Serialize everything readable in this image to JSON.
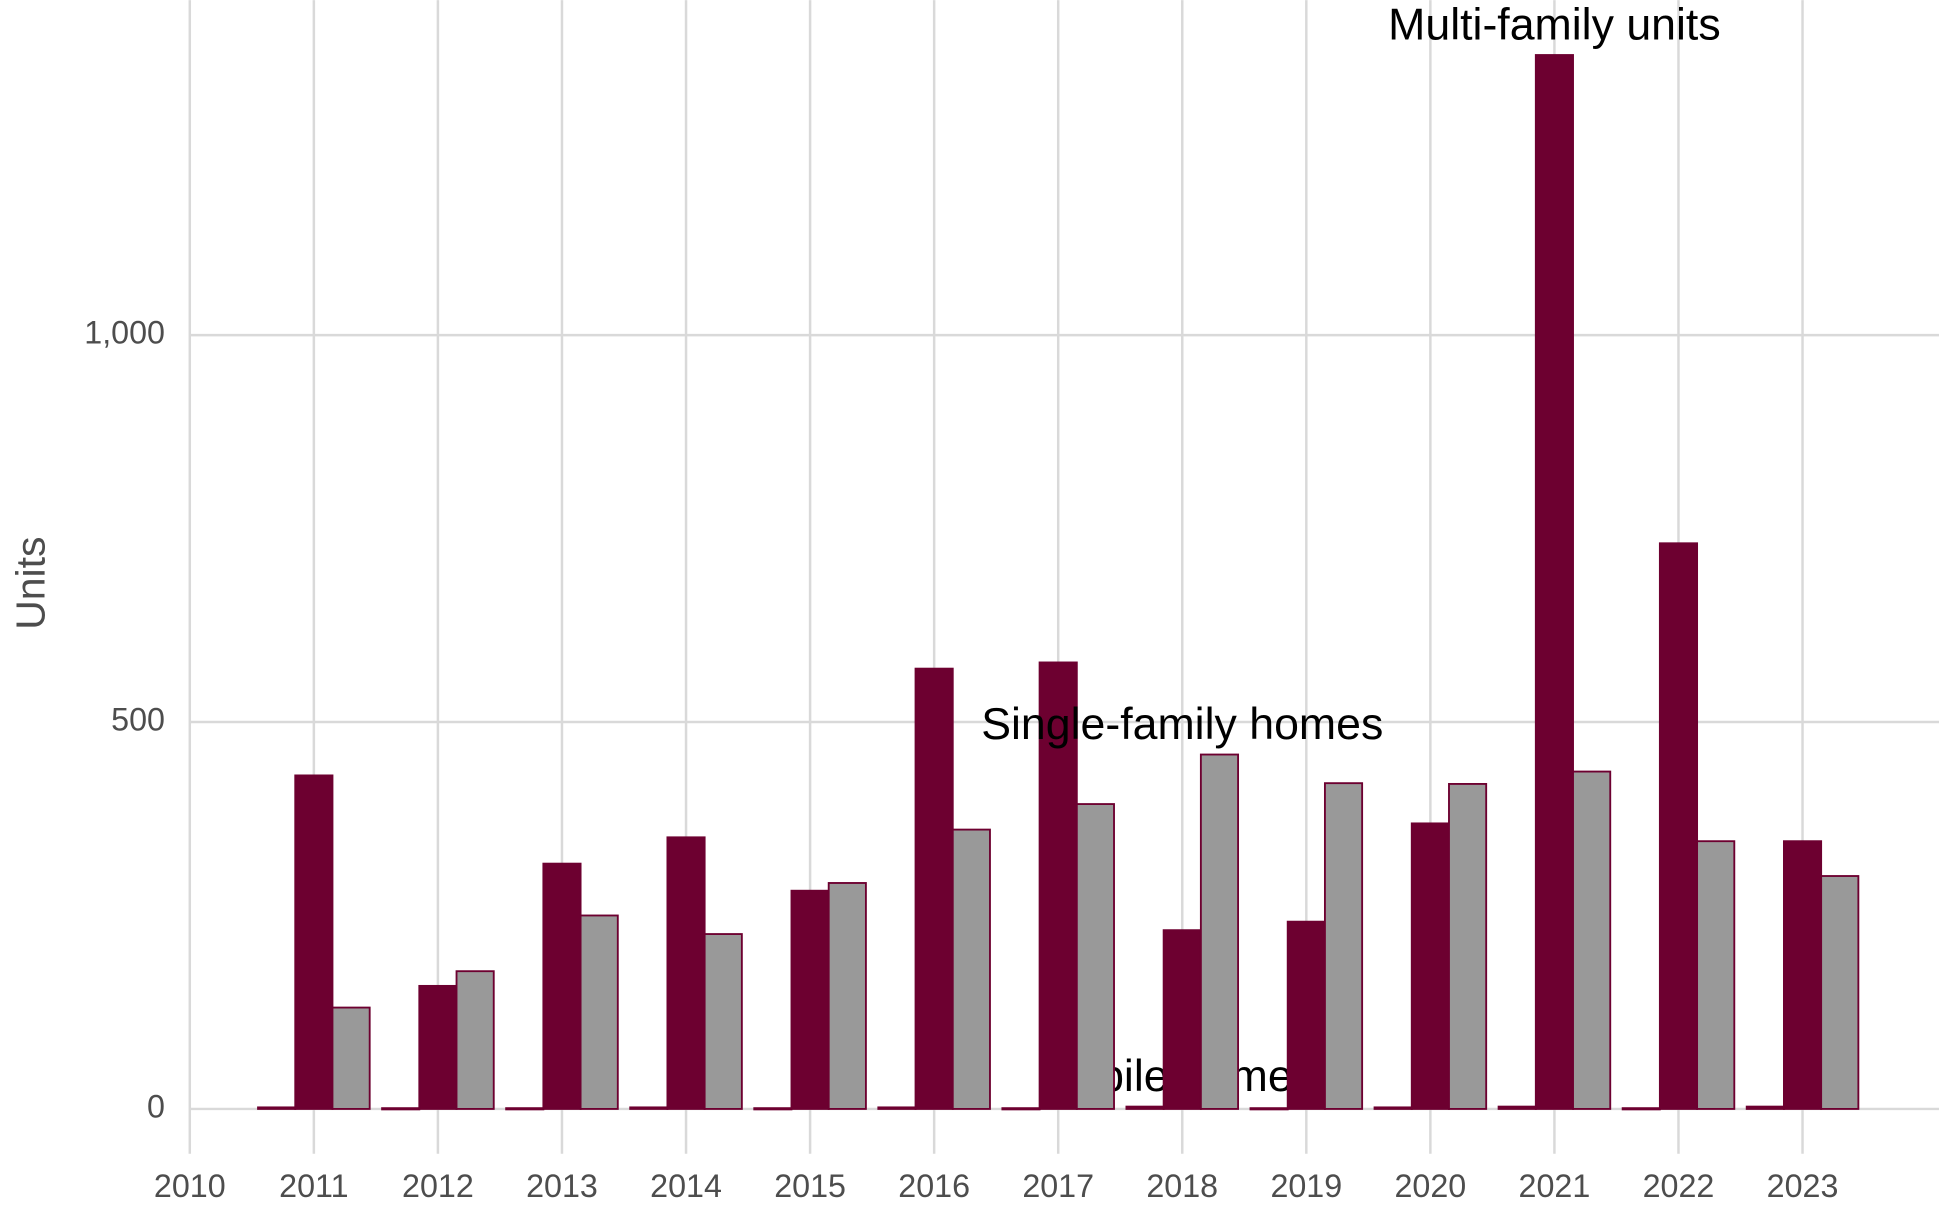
{
  "chart_data": {
    "type": "bar",
    "y_label": "Units",
    "x": [
      2011,
      2012,
      2013,
      2014,
      2015,
      2016,
      2017,
      2018,
      2019,
      2020,
      2021,
      2022,
      2023
    ],
    "series": [
      {
        "name": "Mobile homes",
        "color": "#6d0030",
        "values": [
          2,
          1,
          1,
          2,
          1,
          2,
          1,
          3,
          1,
          2,
          3,
          1,
          3
        ]
      },
      {
        "name": "Multi-family units",
        "color": "#6d0030",
        "values": [
          431,
          159,
          317,
          351,
          282,
          569,
          577,
          231,
          242,
          369,
          1362,
          731,
          346
        ]
      },
      {
        "name": "Single-family homes",
        "color": "#999999",
        "values": [
          131,
          178,
          250,
          226,
          292,
          361,
          394,
          458,
          421,
          420,
          436,
          346,
          301
        ]
      }
    ],
    "bar_edge_color": "#6d0030",
    "xlim": [
      2009.5,
      2024.1
    ],
    "xticks": [
      2010,
      2011,
      2012,
      2013,
      2014,
      2015,
      2016,
      2017,
      2018,
      2019,
      2020,
      2021,
      2022,
      2023
    ],
    "ylim": [
      -58,
      1433
    ],
    "yticks": [
      0,
      500,
      {
        "value": 1000,
        "label": "1,000"
      }
    ],
    "grid": true
  }
}
